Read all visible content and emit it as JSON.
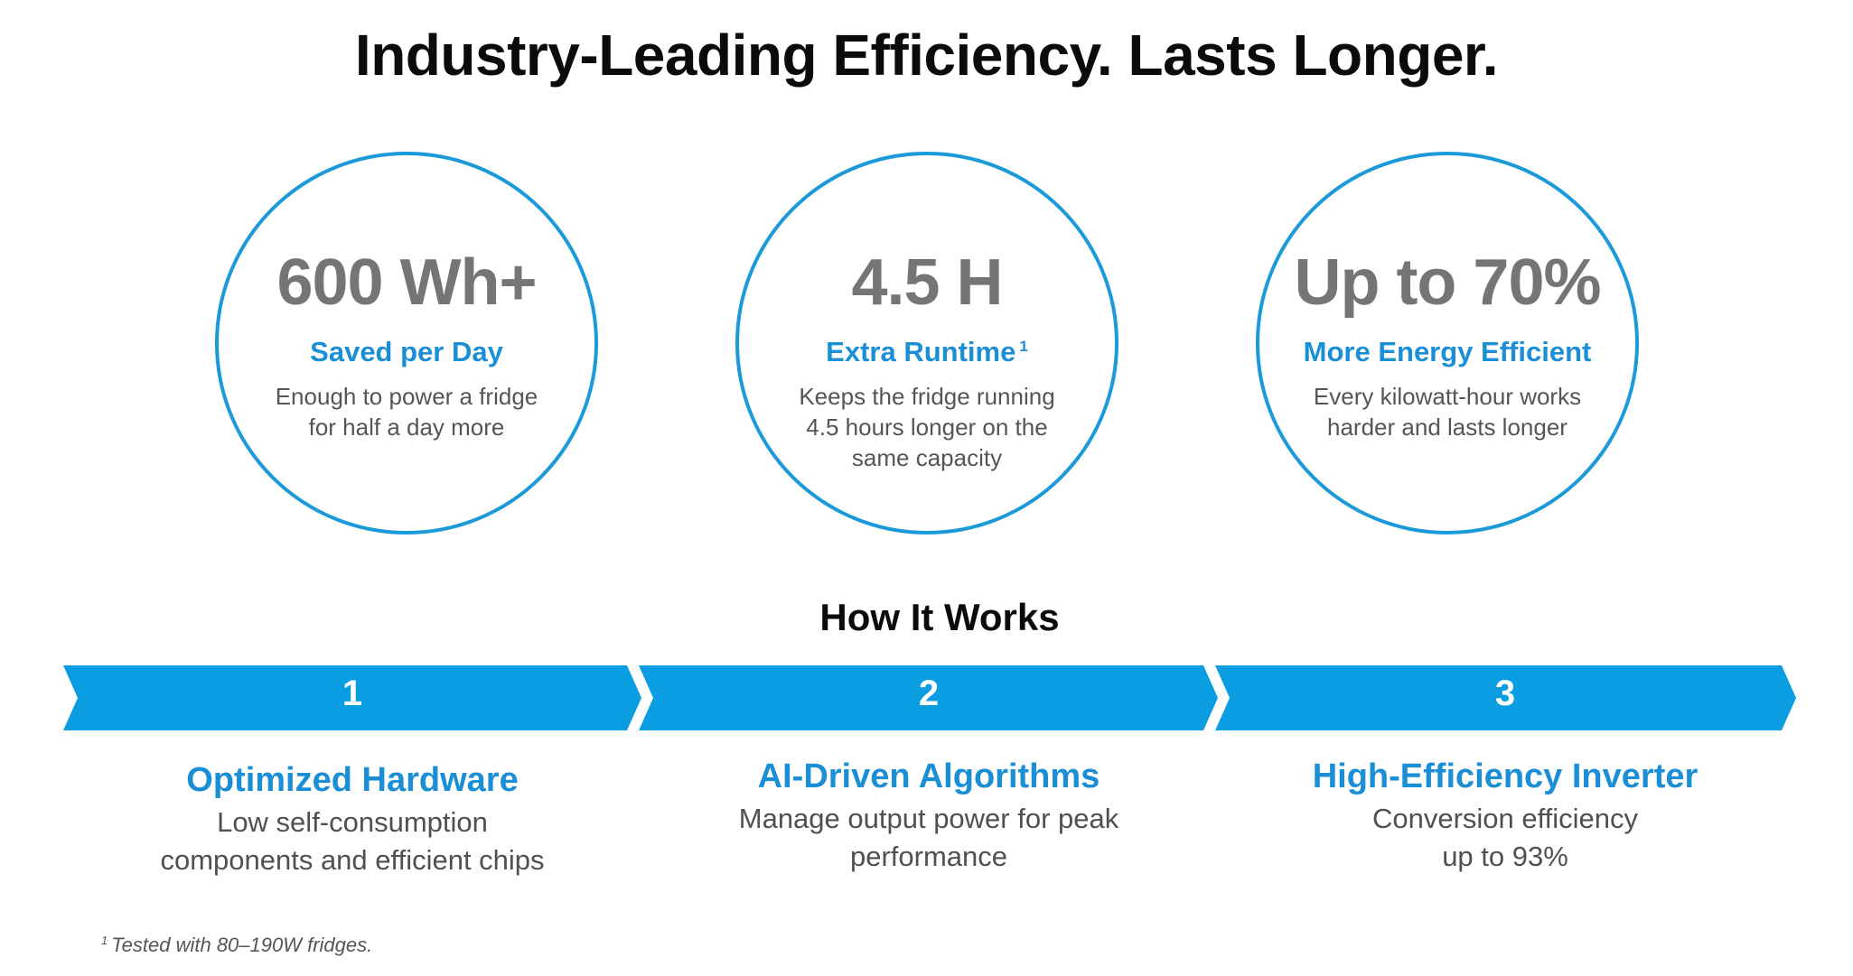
{
  "title": "Industry-Leading Efficiency. Lasts Longer.",
  "stats": [
    {
      "value": "600 Wh+",
      "label": "Saved per Day",
      "note": "",
      "desc": "Enough to power a fridge for half a day more"
    },
    {
      "value": "4.5 H",
      "label": "Extra Runtime",
      "note": "1",
      "desc": "Keeps the fridge running 4.5 hours longer on the same capacity"
    },
    {
      "value": "Up to 70%",
      "label": "More Energy Efficient",
      "note": "",
      "desc": "Every kilowatt-hour works harder and lasts longer"
    }
  ],
  "how_it_works": {
    "title": "How It Works",
    "steps": [
      {
        "number": "1",
        "title": "Optimized Hardware",
        "desc": "Low self-consumption components and efficient chips"
      },
      {
        "number": "2",
        "title": "AI-Driven Algorithms",
        "desc": "Manage output power for peak performance"
      },
      {
        "number": "3",
        "title": "High-Efficiency Inverter",
        "desc": "Conversion efficiency up to 93%"
      }
    ]
  },
  "footnote": {
    "marker": "1",
    "text": "Tested with 80–190W fridges."
  },
  "colors": {
    "accent": "#1a9ad9",
    "arrow": "#0a9de1",
    "stat_gray": "#757575"
  }
}
